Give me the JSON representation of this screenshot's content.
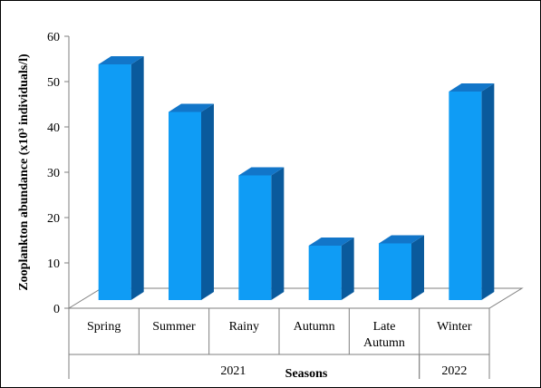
{
  "chart_data": {
    "type": "bar",
    "style": "3d-column",
    "categories": [
      "Spring",
      "Summer",
      "Rainy",
      "Autumn",
      "Late Autumn",
      "Winter"
    ],
    "category_lines": [
      [
        "Spring"
      ],
      [
        "Summer"
      ],
      [
        "Rainy"
      ],
      [
        "Autumn"
      ],
      [
        "Late",
        "Autumn"
      ],
      [
        "Winter"
      ]
    ],
    "values": [
      52,
      41.5,
      27.5,
      12,
      12.5,
      46
    ],
    "groups": [
      {
        "label": "2021",
        "from": 0,
        "to": 4
      },
      {
        "label": "2022",
        "from": 5,
        "to": 5
      }
    ],
    "title": "",
    "xlabel": "Seasons",
    "ylabel": "Zooplankton  abundance (x10³ individuals/l)",
    "ylim": [
      0,
      60
    ],
    "yticks": [
      0,
      10,
      20,
      30,
      40,
      50,
      60
    ],
    "grid": false,
    "legend": "none",
    "colors": {
      "front": "#0f9cf5",
      "side": "#0a5a9c",
      "top": "#1276c9",
      "floor": "#ffffff",
      "axis": "#7f7f7f"
    }
  }
}
